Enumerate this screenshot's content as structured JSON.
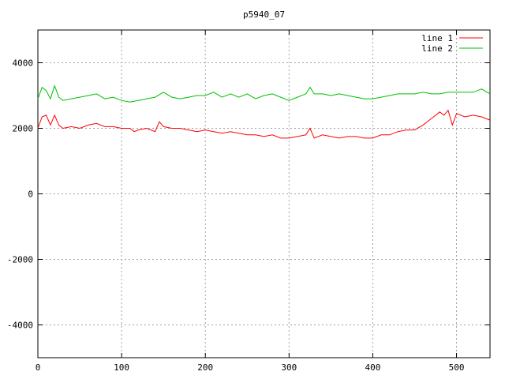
{
  "chart_data": {
    "type": "line",
    "title": "p5940_07",
    "xlabel": "",
    "ylabel": "",
    "xlim": [
      0,
      540
    ],
    "ylim": [
      -5000,
      5000
    ],
    "xticks": [
      0,
      100,
      200,
      300,
      400,
      500
    ],
    "yticks": [
      -4000,
      -2000,
      0,
      2000,
      4000
    ],
    "grid": true,
    "legend_position": "top-right",
    "series": [
      {
        "name": "line 1",
        "color": "#ff0000",
        "points": [
          [
            0,
            2000
          ],
          [
            5,
            2350
          ],
          [
            10,
            2400
          ],
          [
            15,
            2100
          ],
          [
            20,
            2400
          ],
          [
            25,
            2100
          ],
          [
            30,
            2000
          ],
          [
            40,
            2050
          ],
          [
            50,
            2000
          ],
          [
            60,
            2100
          ],
          [
            70,
            2150
          ],
          [
            80,
            2050
          ],
          [
            90,
            2050
          ],
          [
            100,
            2000
          ],
          [
            110,
            2000
          ],
          [
            115,
            1900
          ],
          [
            120,
            1950
          ],
          [
            130,
            2000
          ],
          [
            140,
            1900
          ],
          [
            145,
            2200
          ],
          [
            150,
            2050
          ],
          [
            160,
            2000
          ],
          [
            170,
            2000
          ],
          [
            180,
            1950
          ],
          [
            190,
            1900
          ],
          [
            200,
            1950
          ],
          [
            210,
            1900
          ],
          [
            220,
            1850
          ],
          [
            230,
            1900
          ],
          [
            240,
            1850
          ],
          [
            250,
            1800
          ],
          [
            260,
            1800
          ],
          [
            270,
            1750
          ],
          [
            280,
            1800
          ],
          [
            290,
            1700
          ],
          [
            300,
            1700
          ],
          [
            310,
            1750
          ],
          [
            320,
            1800
          ],
          [
            325,
            2000
          ],
          [
            330,
            1700
          ],
          [
            340,
            1800
          ],
          [
            350,
            1750
          ],
          [
            360,
            1700
          ],
          [
            370,
            1750
          ],
          [
            380,
            1750
          ],
          [
            390,
            1700
          ],
          [
            400,
            1700
          ],
          [
            410,
            1800
          ],
          [
            420,
            1800
          ],
          [
            430,
            1900
          ],
          [
            440,
            1950
          ],
          [
            450,
            1950
          ],
          [
            460,
            2100
          ],
          [
            470,
            2300
          ],
          [
            480,
            2500
          ],
          [
            485,
            2400
          ],
          [
            490,
            2550
          ],
          [
            495,
            2100
          ],
          [
            500,
            2450
          ],
          [
            510,
            2350
          ],
          [
            520,
            2400
          ],
          [
            530,
            2350
          ],
          [
            540,
            2250
          ]
        ]
      },
      {
        "name": "line 2",
        "color": "#00c000",
        "points": [
          [
            0,
            2900
          ],
          [
            5,
            3250
          ],
          [
            10,
            3150
          ],
          [
            15,
            2900
          ],
          [
            20,
            3300
          ],
          [
            25,
            2950
          ],
          [
            30,
            2850
          ],
          [
            40,
            2900
          ],
          [
            50,
            2950
          ],
          [
            60,
            3000
          ],
          [
            70,
            3050
          ],
          [
            80,
            2900
          ],
          [
            90,
            2950
          ],
          [
            100,
            2850
          ],
          [
            110,
            2800
          ],
          [
            120,
            2850
          ],
          [
            130,
            2900
          ],
          [
            140,
            2950
          ],
          [
            150,
            3100
          ],
          [
            160,
            2950
          ],
          [
            170,
            2900
          ],
          [
            180,
            2950
          ],
          [
            190,
            3000
          ],
          [
            200,
            3000
          ],
          [
            210,
            3100
          ],
          [
            220,
            2950
          ],
          [
            230,
            3050
          ],
          [
            240,
            2950
          ],
          [
            250,
            3050
          ],
          [
            260,
            2900
          ],
          [
            270,
            3000
          ],
          [
            280,
            3050
          ],
          [
            290,
            2950
          ],
          [
            300,
            2850
          ],
          [
            310,
            2950
          ],
          [
            320,
            3050
          ],
          [
            325,
            3250
          ],
          [
            330,
            3050
          ],
          [
            340,
            3050
          ],
          [
            350,
            3000
          ],
          [
            360,
            3050
          ],
          [
            370,
            3000
          ],
          [
            380,
            2950
          ],
          [
            390,
            2900
          ],
          [
            400,
            2900
          ],
          [
            410,
            2950
          ],
          [
            420,
            3000
          ],
          [
            430,
            3050
          ],
          [
            440,
            3050
          ],
          [
            450,
            3050
          ],
          [
            460,
            3100
          ],
          [
            470,
            3050
          ],
          [
            480,
            3050
          ],
          [
            490,
            3100
          ],
          [
            500,
            3100
          ],
          [
            510,
            3100
          ],
          [
            520,
            3100
          ],
          [
            530,
            3200
          ],
          [
            540,
            3050
          ]
        ]
      }
    ]
  }
}
